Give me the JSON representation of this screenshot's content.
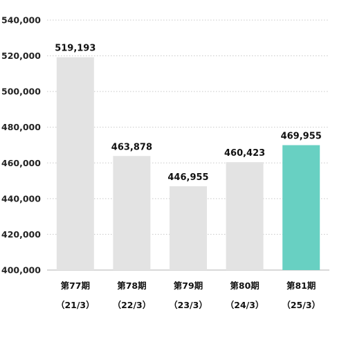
{
  "chart_data": {
    "type": "bar",
    "title": "",
    "xlabel": "",
    "ylabel": "",
    "categories": [
      "第77期",
      "第78期",
      "第79期",
      "第80期",
      "第81期"
    ],
    "category_sublabels": [
      "（21/3）",
      "（22/3）",
      "（23/3）",
      "（24/3）",
      "（25/3）"
    ],
    "values": [
      519193,
      463878,
      446955,
      460423,
      469955
    ],
    "data_labels": [
      "519,193",
      "463,878",
      "446,955",
      "460,423",
      "469,955"
    ],
    "ylim": [
      400000,
      540000
    ],
    "yticks": [
      400000,
      420000,
      440000,
      460000,
      480000,
      500000,
      520000,
      540000
    ],
    "ytick_labels": [
      "400,000",
      "420,000",
      "440,000",
      "460,000",
      "480,000",
      "500,000",
      "520,000",
      "540,000"
    ],
    "grid": true,
    "legend": "none",
    "colors": {
      "default_bar": "#e3e3e3",
      "highlight_bar": "#68d0c2",
      "highlight_index": 4
    }
  }
}
